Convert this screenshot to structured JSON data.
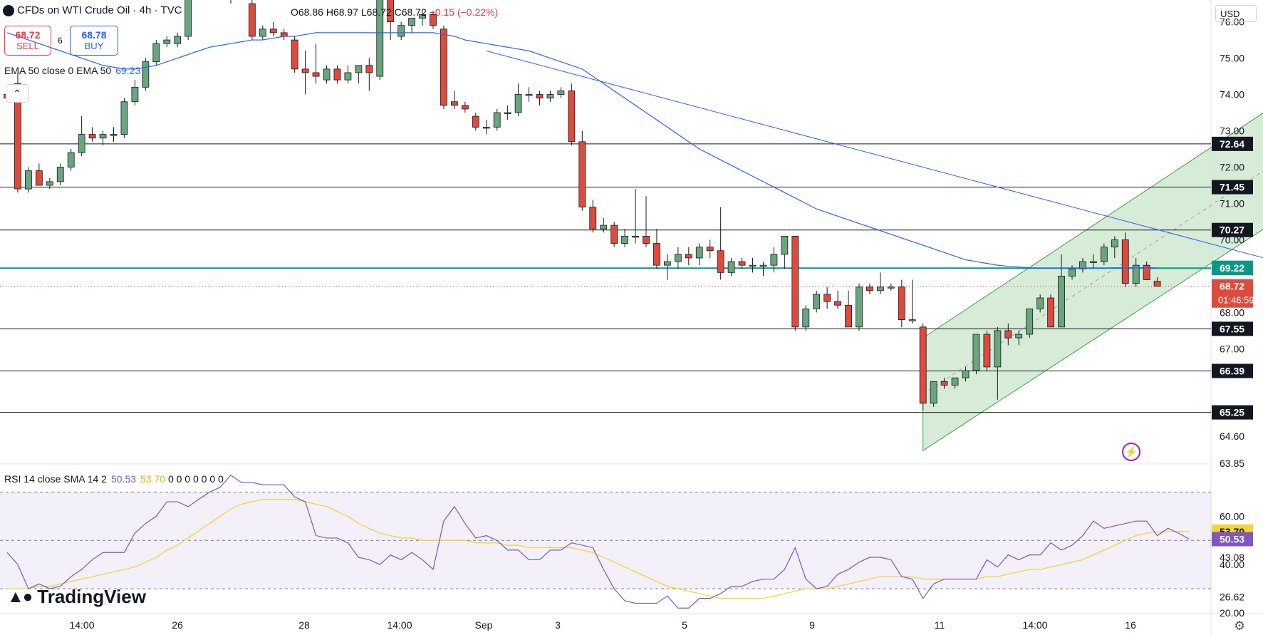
{
  "header": {
    "title": "CFDs on WTI Crude Oil · 4h · TVC",
    "ohlc_open": "O68.86",
    "ohlc_high": "H68.97",
    "ohlc_low": "L68.72",
    "ohlc_close": "C68.72",
    "ohlc_change": "−0.15 (−0.22%)"
  },
  "trade": {
    "sell_price": "68.72",
    "sell_label": "SELL",
    "spread": "6",
    "buy_price": "68.78",
    "buy_label": "BUY"
  },
  "currency": "USD",
  "brand": "TradingView",
  "icons": {
    "symbol": "symbol-icon",
    "collapse": "chevron-up-icon",
    "settings": "gear-icon",
    "flash": "lightning-icon"
  },
  "colors": {
    "up": "#6aa57c",
    "down": "#dd4b3e",
    "ema": "#2962ff",
    "channel_fill": "#c8e6c9",
    "channel_line": "#43a047",
    "support_level": "#089981",
    "rsi": "#7e57c2",
    "rsi_sma": "#f2d43a"
  },
  "chart_data": [
    {
      "type": "candlestick",
      "y_ticks": [
        76.0,
        75.0,
        74.0,
        73.0,
        72.0,
        71.0,
        70.0,
        68.0,
        67.0,
        64.6,
        63.85
      ],
      "x_ticks": [
        "14:00",
        "26",
        "28",
        "14:00",
        "Sep",
        "3",
        "5",
        "9",
        "11",
        "14:00",
        "16"
      ],
      "ylim": [
        63.85,
        76.6
      ],
      "candles": [
        [
          74.0,
          74.2,
          73.8,
          73.9
        ],
        [
          74.3,
          74.6,
          71.3,
          71.4
        ],
        [
          71.4,
          72.0,
          71.3,
          71.9
        ],
        [
          71.9,
          72.1,
          71.5,
          71.5
        ],
        [
          71.5,
          71.7,
          71.4,
          71.6
        ],
        [
          71.6,
          72.1,
          71.5,
          72.0
        ],
        [
          72.0,
          72.5,
          71.9,
          72.4
        ],
        [
          72.4,
          73.4,
          72.3,
          72.9
        ],
        [
          72.9,
          73.1,
          72.7,
          72.8
        ],
        [
          72.8,
          73.0,
          72.6,
          72.9
        ],
        [
          72.9,
          73.1,
          72.7,
          72.9
        ],
        [
          72.9,
          73.9,
          72.8,
          73.8
        ],
        [
          73.8,
          74.4,
          73.7,
          74.2
        ],
        [
          74.2,
          75.0,
          74.1,
          74.9
        ],
        [
          74.9,
          75.5,
          74.8,
          75.4
        ],
        [
          75.4,
          75.6,
          75.3,
          75.5
        ],
        [
          75.4,
          75.7,
          75.3,
          75.6
        ],
        [
          75.6,
          77.0,
          75.5,
          76.9
        ],
        [
          76.9,
          77.2,
          76.7,
          77.1
        ],
        [
          77.1,
          77.3,
          76.9,
          77.0
        ],
        [
          77.0,
          77.2,
          76.8,
          77.1
        ],
        [
          77.1,
          77.3,
          76.5,
          77.2
        ],
        [
          77.2,
          77.4,
          76.7,
          76.8
        ],
        [
          76.5,
          76.7,
          75.5,
          75.6
        ],
        [
          75.6,
          75.9,
          75.5,
          75.8
        ],
        [
          75.8,
          76.0,
          75.6,
          75.7
        ],
        [
          75.7,
          75.8,
          75.5,
          75.6
        ],
        [
          75.5,
          75.6,
          74.6,
          74.7
        ],
        [
          74.7,
          75.2,
          74.0,
          74.6
        ],
        [
          74.6,
          75.4,
          74.3,
          74.5
        ],
        [
          74.4,
          74.8,
          74.3,
          74.7
        ],
        [
          74.7,
          74.8,
          74.3,
          74.4
        ],
        [
          74.4,
          74.8,
          74.3,
          74.6
        ],
        [
          74.6,
          74.8,
          74.3,
          74.8
        ],
        [
          74.8,
          75.0,
          74.1,
          74.6
        ],
        [
          74.5,
          76.8,
          74.4,
          76.7
        ],
        [
          76.7,
          76.8,
          75.5,
          76.0
        ],
        [
          75.6,
          76.0,
          75.5,
          75.9
        ],
        [
          75.9,
          76.1,
          75.7,
          76.1
        ],
        [
          76.1,
          76.3,
          75.9,
          76.2
        ],
        [
          76.2,
          76.3,
          75.8,
          75.9
        ],
        [
          75.8,
          75.9,
          73.6,
          73.7
        ],
        [
          73.8,
          74.1,
          73.6,
          73.7
        ],
        [
          73.7,
          73.8,
          73.5,
          73.6
        ],
        [
          73.4,
          73.5,
          73.0,
          73.1
        ],
        [
          73.1,
          73.3,
          72.9,
          73.1
        ],
        [
          73.1,
          73.6,
          73.0,
          73.5
        ],
        [
          73.5,
          73.7,
          73.3,
          73.5
        ],
        [
          73.5,
          74.3,
          73.4,
          74.0
        ],
        [
          74.0,
          74.2,
          73.8,
          74.0
        ],
        [
          74.0,
          74.1,
          73.7,
          73.9
        ],
        [
          73.9,
          74.1,
          73.8,
          74.0
        ],
        [
          74.0,
          74.2,
          73.9,
          74.1
        ],
        [
          74.1,
          74.3,
          72.6,
          72.7
        ],
        [
          72.7,
          73.0,
          70.8,
          70.9
        ],
        [
          70.9,
          71.1,
          70.2,
          70.3
        ],
        [
          70.3,
          70.6,
          70.2,
          70.4
        ],
        [
          70.4,
          70.5,
          69.8,
          69.9
        ],
        [
          69.9,
          70.3,
          69.8,
          70.1
        ],
        [
          70.1,
          71.4,
          69.9,
          70.1
        ],
        [
          70.1,
          71.2,
          69.8,
          69.9
        ],
        [
          69.9,
          70.3,
          69.2,
          69.3
        ],
        [
          69.3,
          69.6,
          68.9,
          69.4
        ],
        [
          69.4,
          69.8,
          69.2,
          69.6
        ],
        [
          69.6,
          69.8,
          69.3,
          69.5
        ],
        [
          69.5,
          69.9,
          69.3,
          69.8
        ],
        [
          69.8,
          70.0,
          69.5,
          69.7
        ],
        [
          69.7,
          70.9,
          68.9,
          69.1
        ],
        [
          69.1,
          69.5,
          69.0,
          69.4
        ],
        [
          69.4,
          69.5,
          69.2,
          69.3
        ],
        [
          69.3,
          69.5,
          69.1,
          69.3
        ],
        [
          69.3,
          69.4,
          69.0,
          69.3
        ],
        [
          69.3,
          69.8,
          69.1,
          69.6
        ],
        [
          69.6,
          70.1,
          69.2,
          70.1
        ],
        [
          70.1,
          70.1,
          67.5,
          67.6
        ],
        [
          67.6,
          68.2,
          67.5,
          68.1
        ],
        [
          68.1,
          68.6,
          68.0,
          68.5
        ],
        [
          68.5,
          68.7,
          68.1,
          68.3
        ],
        [
          68.3,
          68.6,
          68.1,
          68.2
        ],
        [
          68.2,
          68.6,
          67.6,
          67.6
        ],
        [
          67.6,
          68.8,
          67.5,
          68.7
        ],
        [
          68.7,
          68.8,
          68.5,
          68.6
        ],
        [
          68.6,
          69.1,
          68.5,
          68.7
        ],
        [
          68.7,
          68.8,
          68.6,
          68.7
        ],
        [
          68.7,
          68.9,
          67.6,
          67.8
        ],
        [
          67.8,
          68.9,
          67.7,
          67.8
        ],
        [
          67.6,
          67.7,
          65.3,
          65.5
        ],
        [
          65.5,
          66.1,
          65.4,
          66.1
        ],
        [
          66.1,
          66.2,
          65.9,
          66.0
        ],
        [
          66.0,
          66.2,
          65.9,
          66.2
        ],
        [
          66.2,
          66.5,
          66.1,
          66.4
        ],
        [
          66.4,
          67.4,
          66.3,
          67.4
        ],
        [
          67.4,
          67.5,
          66.4,
          66.5
        ],
        [
          66.5,
          67.6,
          65.6,
          67.5
        ],
        [
          67.5,
          67.7,
          67.1,
          67.3
        ],
        [
          67.3,
          67.5,
          67.1,
          67.4
        ],
        [
          67.4,
          68.1,
          67.3,
          68.1
        ],
        [
          68.1,
          68.5,
          68.0,
          68.4
        ],
        [
          68.4,
          68.5,
          67.6,
          67.6
        ],
        [
          67.6,
          69.6,
          67.6,
          69.0
        ],
        [
          69.0,
          69.3,
          68.9,
          69.2
        ],
        [
          69.2,
          69.5,
          69.1,
          69.4
        ],
        [
          69.4,
          69.6,
          69.2,
          69.4
        ],
        [
          69.4,
          69.9,
          69.3,
          69.8
        ],
        [
          69.8,
          70.1,
          69.5,
          70.0
        ],
        [
          70.0,
          70.2,
          68.7,
          68.8
        ],
        [
          68.8,
          69.5,
          68.7,
          69.3
        ],
        [
          69.3,
          69.4,
          68.9,
          68.9
        ],
        [
          68.86,
          68.97,
          68.72,
          68.72
        ]
      ],
      "horizontal_levels": [
        72.64,
        71.45,
        70.27,
        67.55,
        66.39,
        65.25
      ],
      "support_level": 69.22,
      "current_price_line": 68.72,
      "price_labels": [
        {
          "text": "72.64",
          "value": 72.64,
          "style": "dark"
        },
        {
          "text": "71.45",
          "value": 71.45,
          "style": "dark"
        },
        {
          "text": "70.27",
          "value": 70.27,
          "style": "dark"
        },
        {
          "text": "69.23",
          "value": 69.23,
          "style": "blue"
        },
        {
          "text": "69.22",
          "value": 69.22,
          "style": "teal"
        },
        {
          "text": "68.72",
          "value": 68.72,
          "style": "red"
        },
        {
          "text": "67.55",
          "value": 67.55,
          "style": "dark"
        },
        {
          "text": "66.39",
          "value": 66.39,
          "style": "dark"
        },
        {
          "text": "65.25",
          "value": 65.25,
          "style": "dark"
        }
      ],
      "countdown": "01:46:59",
      "ema": {
        "name": "EMA 50 close 0 EMA 50",
        "value": "69.23",
        "values": [
          75.7,
          75.6,
          75.5,
          75.4,
          75.3,
          75.2,
          75.1,
          75.0,
          74.9,
          74.8,
          74.75,
          74.7,
          74.7,
          74.75,
          74.8,
          74.9,
          75.0,
          75.1,
          75.2,
          75.3,
          75.35,
          75.4,
          75.45,
          75.5,
          75.5,
          75.55,
          75.6,
          75.6,
          75.65,
          75.7,
          75.7,
          75.7,
          75.7,
          75.7,
          75.7,
          75.7,
          75.7,
          75.7,
          75.7,
          75.7,
          75.7,
          75.65,
          75.6,
          75.5,
          75.45,
          75.4,
          75.35,
          75.3,
          75.25,
          75.2,
          75.1,
          75.0,
          74.9,
          74.8,
          74.7,
          74.5,
          74.3,
          74.1,
          73.9,
          73.7,
          73.5,
          73.3,
          73.1,
          72.9,
          72.7,
          72.5,
          72.35,
          72.2,
          72.05,
          71.9,
          71.75,
          71.6,
          71.45,
          71.3,
          71.15,
          71.0,
          70.85,
          70.75,
          70.65,
          70.55,
          70.45,
          70.35,
          70.25,
          70.15,
          70.05,
          69.95,
          69.85,
          69.75,
          69.65,
          69.55,
          69.45,
          69.4,
          69.35,
          69.3,
          69.27,
          69.25,
          69.23,
          69.22,
          69.22,
          69.22,
          69.22,
          69.22,
          69.22,
          69.22,
          69.23,
          69.23,
          69.23,
          69.23,
          69.23
        ]
      },
      "trendline": {
        "start": {
          "candle": 45,
          "value": 75.2
        },
        "end": {
          "candle": 118,
          "value": 69.5
        }
      },
      "channel": {
        "start_candle": 86,
        "end_candle": 118,
        "upper": [
          67.3,
          73.5
        ],
        "lower": [
          64.2,
          70.3
        ],
        "mid": [
          65.75,
          71.9
        ]
      }
    },
    {
      "type": "line",
      "title": "RSI 14 close SMA 14 2",
      "rsi_value": "50.53",
      "sma_value": "53.70",
      "legend_values": [
        "0",
        "0",
        "0",
        "0",
        "0",
        "0",
        "0"
      ],
      "ylim": [
        20.0,
        79.0
      ],
      "y_ticks": [
        60.0,
        43.08,
        40.0,
        26.62,
        20.0
      ],
      "bands": [
        70,
        50,
        30
      ],
      "value_labels": [
        {
          "text": "53.70",
          "value": 53.7,
          "style": "yellow"
        },
        {
          "text": "50.53",
          "value": 50.53,
          "style": "purple"
        }
      ],
      "series": [
        {
          "kind": "rsi",
          "values": [
            45,
            40,
            30,
            32,
            30,
            31,
            35,
            38,
            42,
            45,
            45,
            45,
            53,
            57,
            60,
            66,
            66,
            64,
            67,
            70,
            72,
            77,
            74,
            74,
            73,
            73,
            73,
            68,
            66,
            52,
            51,
            51,
            49,
            43,
            42,
            40,
            44,
            42,
            45,
            42,
            38,
            58,
            64,
            57,
            51,
            52,
            50,
            46,
            46,
            42,
            42,
            46,
            46,
            49,
            48,
            47,
            38,
            30,
            25,
            24,
            24,
            24,
            27,
            22,
            22,
            26,
            26,
            28,
            31,
            31,
            33,
            34,
            34,
            38,
            47,
            34,
            30,
            31,
            36,
            38,
            41,
            43,
            43,
            42,
            35,
            34,
            26,
            32,
            34,
            34,
            34,
            34,
            42,
            39,
            44,
            42,
            44,
            44,
            49,
            46,
            48,
            52,
            58,
            55,
            56,
            57,
            58,
            58,
            52,
            55,
            53,
            50.53
          ]
        },
        {
          "kind": "sma",
          "values": [
            30,
            30,
            30,
            31,
            31,
            32,
            33,
            34,
            35,
            36,
            37,
            38,
            39,
            41,
            43,
            46,
            48,
            51,
            54,
            57,
            60,
            63,
            65,
            66,
            67,
            67,
            67,
            67,
            66,
            65,
            64,
            62,
            60,
            57,
            55,
            53,
            52,
            51,
            51,
            50,
            50,
            50,
            50,
            50,
            49,
            49,
            49,
            48,
            48,
            47,
            47,
            47,
            47,
            47,
            46,
            45,
            43,
            41,
            39,
            37,
            35,
            33,
            31,
            30,
            29,
            28,
            27,
            26,
            26,
            26,
            26,
            26,
            27,
            28,
            29,
            30,
            30,
            30,
            31,
            32,
            33,
            34,
            35,
            35,
            35,
            35,
            34,
            34,
            34,
            34,
            34,
            34,
            35,
            35,
            36,
            37,
            38,
            38,
            39,
            40,
            41,
            42,
            44,
            46,
            48,
            50,
            52,
            53,
            53.5,
            53.7,
            53.7,
            53.7
          ]
        }
      ]
    }
  ]
}
